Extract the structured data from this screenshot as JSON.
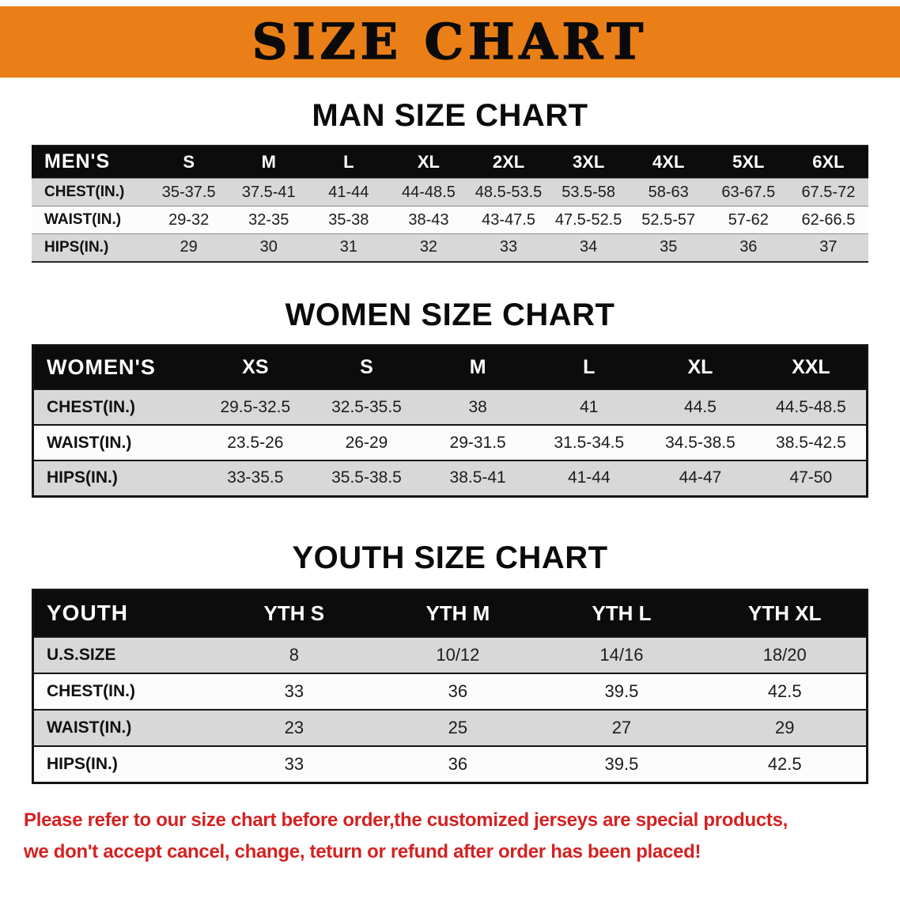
{
  "banner": {
    "title": "SIZE CHART",
    "bg_color": "#EA7F17"
  },
  "sections": [
    {
      "heading": "MAN SIZE CHART",
      "table": {
        "header": [
          "MEN'S",
          "S",
          "M",
          "L",
          "XL",
          "2XL",
          "3XL",
          "4XL",
          "5XL",
          "6XL"
        ],
        "rows": [
          [
            "CHEST(IN.)",
            "35-37.5",
            "37.5-41",
            "41-44",
            "44-48.5",
            "48.5-53.5",
            "53.5-58",
            "58-63",
            "63-67.5",
            "67.5-72"
          ],
          [
            "WAIST(IN.)",
            "29-32",
            "32-35",
            "35-38",
            "38-43",
            "43-47.5",
            "47.5-52.5",
            "52.5-57",
            "57-62",
            "62-66.5"
          ],
          [
            "HIPS(IN.)",
            "29",
            "30",
            "31",
            "32",
            "33",
            "34",
            "35",
            "36",
            "37"
          ]
        ]
      }
    },
    {
      "heading": "WOMEN SIZE CHART",
      "table": {
        "header": [
          "WOMEN'S",
          "XS",
          "S",
          "M",
          "L",
          "XL",
          "XXL"
        ],
        "rows": [
          [
            "CHEST(IN.)",
            "29.5-32.5",
            "32.5-35.5",
            "38",
            "41",
            "44.5",
            "44.5-48.5"
          ],
          [
            "WAIST(IN.)",
            "23.5-26",
            "26-29",
            "29-31.5",
            "31.5-34.5",
            "34.5-38.5",
            "38.5-42.5"
          ],
          [
            "HIPS(IN.)",
            "33-35.5",
            "35.5-38.5",
            "38.5-41",
            "41-44",
            "44-47",
            "47-50"
          ]
        ]
      }
    },
    {
      "heading": "YOUTH SIZE CHART",
      "table": {
        "header": [
          "YOUTH",
          "YTH S",
          "YTH M",
          "YTH L",
          "YTH XL"
        ],
        "rows": [
          [
            "U.S.SIZE",
            "8",
            "10/12",
            "14/16",
            "18/20"
          ],
          [
            "CHEST(IN.)",
            "33",
            "36",
            "39.5",
            "42.5"
          ],
          [
            "WAIST(IN.)",
            "23",
            "25",
            "27",
            "29"
          ],
          [
            "HIPS(IN.)",
            "33",
            "36",
            "39.5",
            "42.5"
          ]
        ]
      }
    }
  ],
  "disclaimer": {
    "color": "#D42121",
    "lines": [
      "Please refer to our size chart before order,the customized jerseys are special products,",
      "we don't accept cancel, change, teturn or refund after order has been placed!"
    ]
  }
}
